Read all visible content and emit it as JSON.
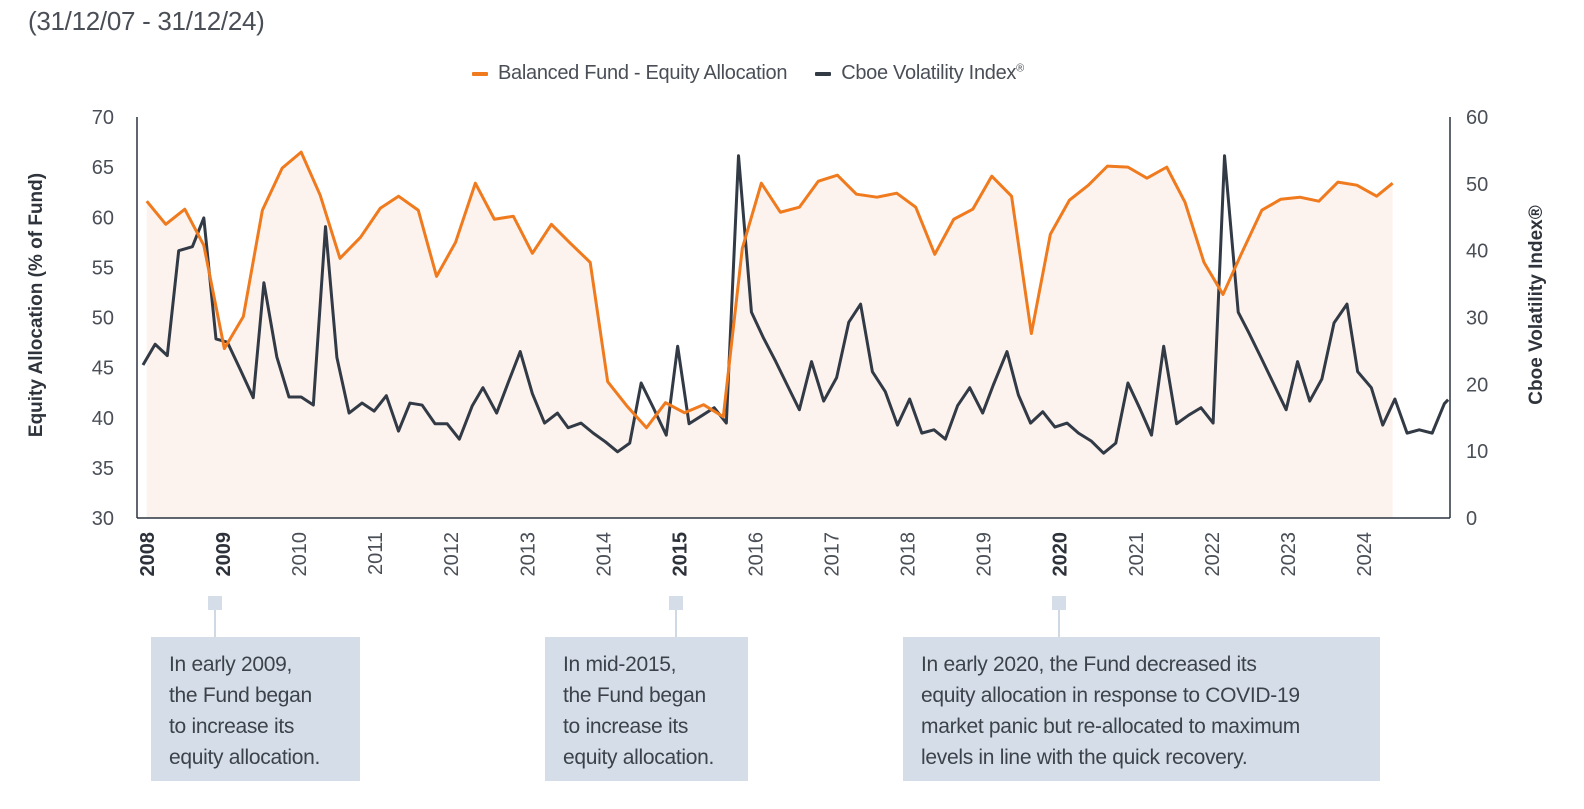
{
  "subtitle": "(31/12/07 - 31/12/24)",
  "colors": {
    "equity": "#f07a1e",
    "vix": "#323a46",
    "fill": "#fdf3ee",
    "axis": "#2b3440",
    "annotation_bg": "#d5dee8"
  },
  "legend": {
    "equity_label": "Balanced Fund - Equity Allocation",
    "vix_label": "Cboe Volatility Index",
    "vix_mark": "®"
  },
  "annotations": [
    {
      "year": "2009",
      "text": "In early 2009, the Fund began to increase its equity allocation.",
      "lines": [
        "In early 2009,",
        "the Fund began",
        "to increase its",
        "equity allocation."
      ]
    },
    {
      "year": "2015",
      "text": "In mid-2015, the Fund began to increase its equity allocation.",
      "lines": [
        "In mid-2015,",
        "the Fund began",
        "to increase its",
        "equity allocation."
      ]
    },
    {
      "year": "2020",
      "text": "In early 2020, the Fund decreased its equity allocation in response to COVID-19 market panic but re-allocated to maximum levels in line with the quick recovery.",
      "lines": [
        "In early 2020, the Fund decreased its",
        "equity allocation in response to COVID-19",
        "market panic but re-allocated to maximum",
        "levels in line with the quick recovery."
      ]
    }
  ],
  "chart_data": {
    "type": "line",
    "title": "",
    "subtitle": "(31/12/07 - 31/12/24)",
    "xlabel": "",
    "ylabel": "Equity Allocation (% of Fund)",
    "y2label": "Cboe Volatility Index®",
    "xlim": [
      2008,
      2025
    ],
    "ylim": [
      30,
      70
    ],
    "y2lim": [
      0,
      60
    ],
    "yticks": [
      70,
      65,
      60,
      55,
      50,
      45,
      40,
      35,
      30
    ],
    "y2ticks": [
      60,
      50,
      40,
      30,
      20,
      10,
      0
    ],
    "xticks": [
      {
        "label": "2008",
        "value": 2008,
        "bold": true
      },
      {
        "label": "2009",
        "value": 2009,
        "bold": true
      },
      {
        "label": "2010",
        "value": 2010,
        "bold": false
      },
      {
        "label": "2011",
        "value": 2011,
        "bold": false
      },
      {
        "label": "2012",
        "value": 2012,
        "bold": false
      },
      {
        "label": "2013",
        "value": 2013,
        "bold": false
      },
      {
        "label": "2014",
        "value": 2014,
        "bold": false
      },
      {
        "label": "2015",
        "value": 2015,
        "bold": true
      },
      {
        "label": "2016",
        "value": 2016,
        "bold": false
      },
      {
        "label": "2017",
        "value": 2017,
        "bold": false
      },
      {
        "label": "2018",
        "value": 2018,
        "bold": false
      },
      {
        "label": "2019",
        "value": 2019,
        "bold": false
      },
      {
        "label": "2020",
        "value": 2020,
        "bold": true
      },
      {
        "label": "2021",
        "value": 2021,
        "bold": false
      },
      {
        "label": "2022",
        "value": 2022,
        "bold": false
      },
      {
        "label": "2023",
        "value": 2023,
        "bold": false
      },
      {
        "label": "2024",
        "value": 2024,
        "bold": false
      }
    ],
    "legend_position": "top-center",
    "grid": false,
    "series": [
      {
        "name": "Balanced Fund - Equity Allocation",
        "axis": "left",
        "style": "area-line",
        "points": [
          [
            2008.01,
            61.6
          ],
          [
            2008.26,
            59.3
          ],
          [
            2008.51,
            60.8
          ],
          [
            2008.76,
            57.2
          ],
          [
            2009.03,
            46.9
          ],
          [
            2009.28,
            50.1
          ],
          [
            2009.53,
            60.7
          ],
          [
            2009.79,
            64.9
          ],
          [
            2010.04,
            66.5
          ],
          [
            2010.29,
            62.2
          ],
          [
            2010.55,
            55.9
          ],
          [
            2010.82,
            58.0
          ],
          [
            2011.08,
            60.9
          ],
          [
            2011.32,
            62.1
          ],
          [
            2011.58,
            60.7
          ],
          [
            2011.82,
            54.1
          ],
          [
            2012.07,
            57.5
          ],
          [
            2012.33,
            63.4
          ],
          [
            2012.58,
            59.8
          ],
          [
            2012.83,
            60.1
          ],
          [
            2013.08,
            56.4
          ],
          [
            2013.33,
            59.3
          ],
          [
            2013.58,
            57.4
          ],
          [
            2013.84,
            55.5
          ],
          [
            2014.07,
            43.6
          ],
          [
            2014.32,
            41.2
          ],
          [
            2014.58,
            39.0
          ],
          [
            2014.83,
            41.5
          ],
          [
            2015.08,
            40.5
          ],
          [
            2015.33,
            41.3
          ],
          [
            2015.59,
            40.1
          ],
          [
            2015.84,
            56.9
          ],
          [
            2016.09,
            63.4
          ],
          [
            2016.34,
            60.5
          ],
          [
            2016.59,
            61.0
          ],
          [
            2016.84,
            63.6
          ],
          [
            2017.09,
            64.2
          ],
          [
            2017.09,
            64.2
          ],
          [
            2017.34,
            62.3
          ],
          [
            2017.61,
            62.0
          ],
          [
            2017.87,
            62.4
          ],
          [
            2018.12,
            61.0
          ],
          [
            2018.37,
            56.3
          ],
          [
            2018.62,
            59.8
          ],
          [
            2018.87,
            60.8
          ],
          [
            2019.12,
            64.1
          ],
          [
            2019.38,
            62.1
          ],
          [
            2019.64,
            48.4
          ],
          [
            2019.89,
            58.3
          ],
          [
            2020.14,
            61.7
          ],
          [
            2020.39,
            63.2
          ],
          [
            2020.64,
            65.1
          ],
          [
            2020.91,
            65.0
          ],
          [
            2021.16,
            63.9
          ],
          [
            2021.42,
            65.0
          ],
          [
            2021.66,
            61.5
          ],
          [
            2021.91,
            55.5
          ],
          [
            2022.16,
            52.3
          ],
          [
            2022.41,
            56.5
          ],
          [
            2022.67,
            60.7
          ],
          [
            2022.92,
            61.8
          ],
          [
            2023.17,
            62.0
          ],
          [
            2023.42,
            61.6
          ],
          [
            2023.67,
            63.5
          ],
          [
            2023.92,
            63.2
          ],
          [
            2024.18,
            62.1
          ],
          [
            2024.39,
            63.4
          ]
        ]
      },
      {
        "name": "Cboe Volatility Index®",
        "axis": "right",
        "style": "line",
        "points": [
          [
            2007.96,
            22.9
          ],
          [
            2008.12,
            26.0
          ],
          [
            2008.28,
            24.3
          ],
          [
            2008.43,
            40.0
          ],
          [
            2008.61,
            40.6
          ],
          [
            2008.76,
            44.9
          ],
          [
            2008.92,
            26.8
          ],
          [
            2009.07,
            26.3
          ],
          [
            2009.24,
            22.2
          ],
          [
            2009.41,
            18.0
          ],
          [
            2009.55,
            35.2
          ],
          [
            2009.72,
            24.1
          ],
          [
            2009.88,
            18.1
          ],
          [
            2010.04,
            18.1
          ],
          [
            2010.2,
            16.9
          ],
          [
            2010.36,
            43.6
          ],
          [
            2010.51,
            24.0
          ],
          [
            2010.67,
            15.7
          ],
          [
            2010.84,
            17.2
          ],
          [
            2011.0,
            16.0
          ],
          [
            2011.16,
            18.3
          ],
          [
            2011.32,
            13.0
          ],
          [
            2011.47,
            17.2
          ],
          [
            2011.63,
            16.9
          ],
          [
            2011.8,
            14.1
          ],
          [
            2011.96,
            14.1
          ],
          [
            2012.12,
            11.8
          ],
          [
            2012.29,
            16.8
          ],
          [
            2012.43,
            19.5
          ],
          [
            2012.61,
            15.7
          ],
          [
            2012.76,
            20.2
          ],
          [
            2012.92,
            24.9
          ],
          [
            2013.08,
            18.6
          ],
          [
            2013.24,
            14.2
          ],
          [
            2013.41,
            15.7
          ],
          [
            2013.55,
            13.5
          ],
          [
            2013.72,
            14.2
          ],
          [
            2013.88,
            12.7
          ],
          [
            2014.04,
            11.4
          ],
          [
            2014.2,
            9.9
          ],
          [
            2014.36,
            11.2
          ],
          [
            2014.51,
            20.2
          ],
          [
            2014.67,
            16.5
          ],
          [
            2014.84,
            12.4
          ],
          [
            2014.99,
            25.7
          ],
          [
            2015.14,
            14.1
          ],
          [
            2015.32,
            15.4
          ],
          [
            2015.47,
            16.5
          ],
          [
            2015.63,
            14.2
          ],
          [
            2015.79,
            54.2
          ],
          [
            2015.96,
            30.8
          ],
          [
            2016.12,
            26.9
          ],
          [
            2016.28,
            23.4
          ],
          [
            2016.43,
            19.9
          ],
          [
            2016.59,
            16.2
          ],
          [
            2016.75,
            23.4
          ],
          [
            2016.91,
            17.5
          ],
          [
            2017.08,
            21.0
          ],
          [
            2017.24,
            29.3
          ],
          [
            2017.395,
            32.0
          ],
          [
            2017.55,
            21.9
          ],
          [
            2017.72,
            18.9
          ],
          [
            2017.88,
            13.9
          ],
          [
            2018.04,
            17.8
          ],
          [
            2018.2,
            12.7
          ],
          [
            2018.36,
            13.2
          ],
          [
            2018.51,
            11.8
          ],
          [
            2018.67,
            16.8
          ],
          [
            2018.83,
            19.5
          ],
          [
            2019.0,
            15.7
          ],
          [
            2019.14,
            19.9
          ],
          [
            2019.32,
            24.9
          ],
          [
            2019.47,
            18.4
          ],
          [
            2019.63,
            14.2
          ],
          [
            2019.79,
            15.9
          ],
          [
            2019.95,
            13.6
          ],
          [
            2020.11,
            14.2
          ],
          [
            2020.26,
            12.7
          ],
          [
            2020.43,
            11.5
          ],
          [
            2020.59,
            9.7
          ],
          [
            2020.75,
            11.2
          ],
          [
            2020.91,
            20.2
          ],
          [
            2021.07,
            16.3
          ],
          [
            2021.22,
            12.4
          ],
          [
            2021.38,
            25.7
          ],
          [
            2021.55,
            14.1
          ],
          [
            2021.71,
            15.4
          ],
          [
            2021.87,
            16.5
          ],
          [
            2022.03,
            14.2
          ],
          [
            2022.18,
            54.2
          ],
          [
            2022.36,
            30.8
          ],
          [
            2022.5,
            27.7
          ],
          [
            2022.66,
            24.0
          ],
          [
            2022.99,
            16.2
          ],
          [
            2023.14,
            23.4
          ],
          [
            2023.3,
            17.5
          ],
          [
            2023.46,
            20.8
          ],
          [
            2023.62,
            29.2
          ],
          [
            2023.79,
            32.0
          ],
          [
            2023.93,
            21.9
          ],
          [
            2024.11,
            19.5
          ],
          [
            2024.26,
            13.9
          ],
          [
            2024.42,
            17.8
          ],
          [
            2024.58,
            12.7
          ],
          [
            2024.74,
            13.2
          ],
          [
            2024.91,
            12.7
          ],
          [
            2025.07,
            17.1
          ],
          [
            2025.12,
            17.7
          ]
        ]
      }
    ]
  }
}
